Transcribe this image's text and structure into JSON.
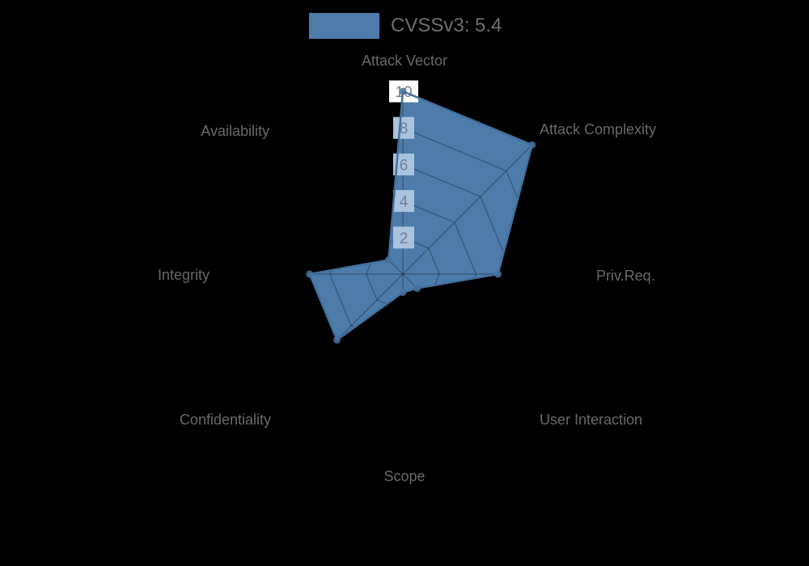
{
  "chart_data": {
    "type": "radar",
    "title": "",
    "legend_label": "CVSSv3: 5.4",
    "legend_position": "top-center",
    "score": "5.4",
    "axes": [
      "Attack Vector",
      "Attack Complexity",
      "Priv.Req.",
      "User Interaction",
      "Scope",
      "Confidentiality",
      "Integrity",
      "Availability"
    ],
    "series": [
      {
        "name": "CVSSv3: 5.4",
        "values": [
          10,
          10,
          5.2,
          1.1,
          1.0,
          5.1,
          5.1,
          1.1
        ]
      }
    ],
    "radial_ticks": [
      "2",
      "4",
      "6",
      "8",
      "10"
    ],
    "rmax": 10,
    "grid": "polygon-web",
    "grid_visible_outside_fill": false,
    "colors": {
      "background": "#000000",
      "fill": "#4d7cab",
      "outline": "#436f9c",
      "marker": "#46719e",
      "gridline": "rgba(10,10,10,0.28)",
      "tick_box_tinted": "#a9c3de",
      "tick_box_plain": "#ffffff",
      "tick_text_tinted": "#6f7f9b",
      "tick_text_plain": "#828282",
      "axis_label": "#696969",
      "legend_text": "#6e6e6e"
    }
  }
}
